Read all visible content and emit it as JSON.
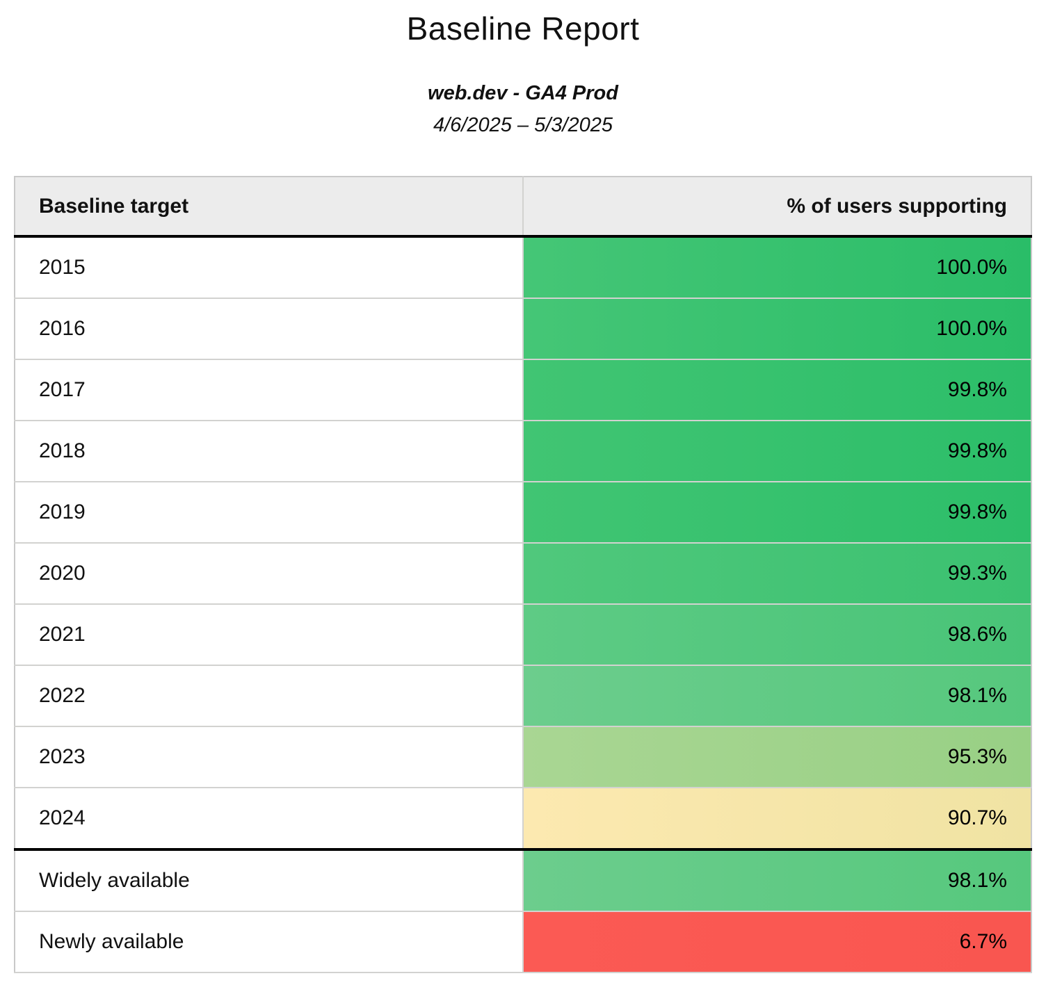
{
  "header": {
    "title": "Baseline Report",
    "property": "web.dev - GA4 Prod",
    "date_range": "4/6/2025 – 5/3/2025"
  },
  "colors": {
    "header_bg": "#ececec",
    "outer_border": "#c9c9c9",
    "row_divider": "#d2d2d0",
    "group_divider": "#000000",
    "text": "#111111"
  },
  "table": {
    "columns": [
      "Baseline target",
      "% of users supporting"
    ],
    "rows": [
      {
        "label": "2015",
        "value": "100.0%",
        "color_left": "#45c676",
        "color_right": "#2abd68",
        "group_end": false
      },
      {
        "label": "2016",
        "value": "100.0%",
        "color_left": "#45c676",
        "color_right": "#2abd68",
        "group_end": false
      },
      {
        "label": "2017",
        "value": "99.8%",
        "color_left": "#41c573",
        "color_right": "#2cbe69",
        "group_end": false
      },
      {
        "label": "2018",
        "value": "99.8%",
        "color_left": "#41c573",
        "color_right": "#2cbe69",
        "group_end": false
      },
      {
        "label": "2019",
        "value": "99.8%",
        "color_left": "#41c573",
        "color_right": "#2cbe69",
        "group_end": false
      },
      {
        "label": "2020",
        "value": "99.3%",
        "color_left": "#50c87c",
        "color_right": "#3ac170",
        "group_end": false
      },
      {
        "label": "2021",
        "value": "98.6%",
        "color_left": "#5ecb85",
        "color_right": "#48c477",
        "group_end": false
      },
      {
        "label": "2022",
        "value": "98.1%",
        "color_left": "#6ccd8d",
        "color_right": "#56c87d",
        "group_end": false
      },
      {
        "label": "2023",
        "value": "95.3%",
        "color_left": "#a9d693",
        "color_right": "#98d085",
        "group_end": false
      },
      {
        "label": "2024",
        "value": "90.7%",
        "color_left": "#fce9b0",
        "color_right": "#f0e3a3",
        "group_end": true
      },
      {
        "label": "Widely available",
        "value": "98.1%",
        "color_left": "#6ccd8d",
        "color_right": "#56c87d",
        "group_end": false
      },
      {
        "label": "Newly available",
        "value": "6.7%",
        "color_left": "#fb5a54",
        "color_right": "#f95650",
        "group_end": false
      }
    ]
  },
  "chart_data": {
    "type": "table",
    "title": "Baseline Report",
    "subtitle": "web.dev - GA4 Prod",
    "date_range": "4/6/2025 – 5/3/2025",
    "columns": [
      "Baseline target",
      "% of users supporting"
    ],
    "rows": [
      [
        "2015",
        100.0
      ],
      [
        "2016",
        100.0
      ],
      [
        "2017",
        99.8
      ],
      [
        "2018",
        99.8
      ],
      [
        "2019",
        99.8
      ],
      [
        "2020",
        99.3
      ],
      [
        "2021",
        98.6
      ],
      [
        "2022",
        98.1
      ],
      [
        "2023",
        95.3
      ],
      [
        "2024",
        90.7
      ],
      [
        "Widely available",
        98.1
      ],
      [
        "Newly available",
        6.7
      ]
    ],
    "value_unit": "%",
    "conditional_formatting": "green (high) → yellow (mid) → red (low)",
    "legend_position": "none",
    "grid": "row and column dividers, thick black rule under header and under 2024"
  }
}
